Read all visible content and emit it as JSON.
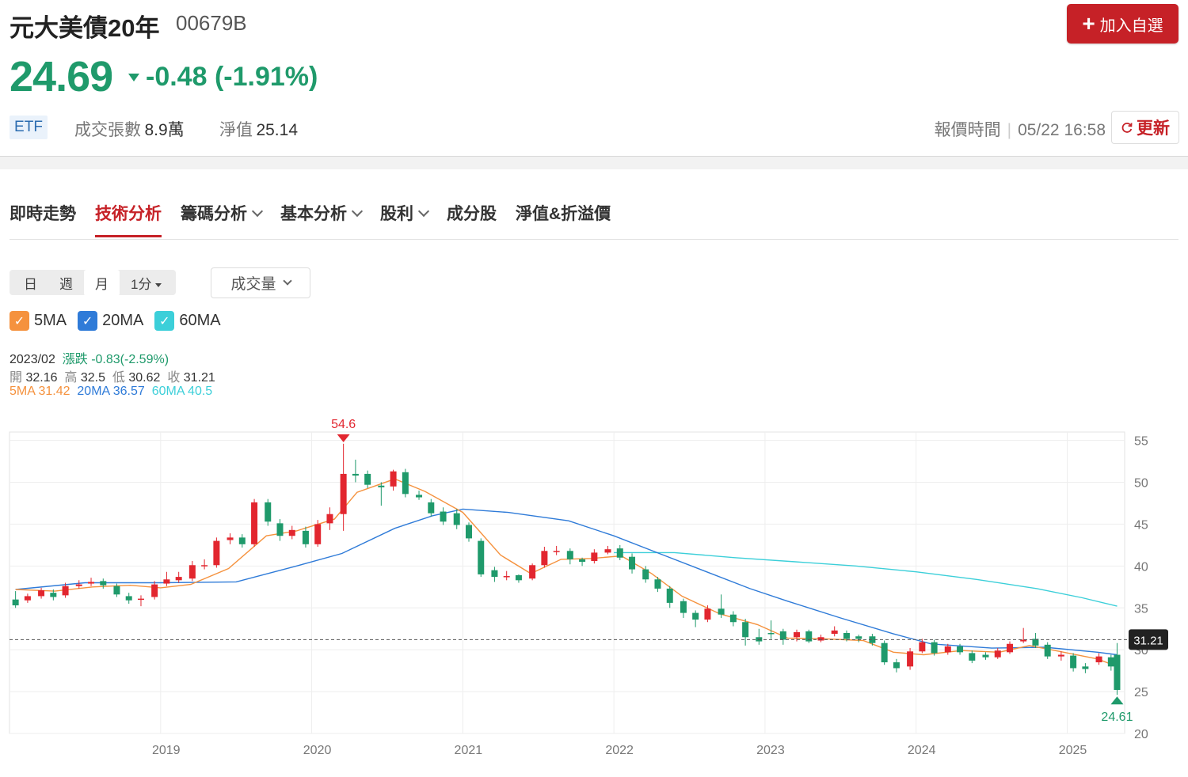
{
  "header": {
    "title": "元大美債20年",
    "code": "00679B",
    "add_button": "加入自選",
    "price": "24.69",
    "change": "-0.48 (-1.91%)",
    "badge": "ETF",
    "volume_label": "成交張數",
    "volume_value": "8.9萬",
    "nav_label": "淨值",
    "nav_value": "25.14",
    "quote_time_label": "報價時間",
    "quote_time_value": "05/22 16:58",
    "refresh_label": "更新"
  },
  "tabs": [
    {
      "label": "即時走勢",
      "dropdown": false
    },
    {
      "label": "技術分析",
      "dropdown": false,
      "active": true
    },
    {
      "label": "籌碼分析",
      "dropdown": true
    },
    {
      "label": "基本分析",
      "dropdown": true
    },
    {
      "label": "股利",
      "dropdown": true
    },
    {
      "label": "成分股",
      "dropdown": false
    },
    {
      "label": "淨值&折溢價",
      "dropdown": false
    }
  ],
  "period": {
    "options": [
      "日",
      "週",
      "月",
      "1分"
    ],
    "selected": "月"
  },
  "indicator_dropdown": "成交量",
  "ma_legend": [
    {
      "label": "5MA",
      "color": "#f5923e"
    },
    {
      "label": "20MA",
      "color": "#2f7bd8"
    },
    {
      "label": "60MA",
      "color": "#3ccfd9"
    }
  ],
  "info": {
    "date": "2023/02",
    "change_label": "漲跌",
    "change_value": "-0.83(-2.59%)",
    "open_label": "開",
    "open": "32.16",
    "high_label": "高",
    "high": "32.5",
    "low_label": "低",
    "low": "30.62",
    "close_label": "收",
    "close": "31.21",
    "ma5": "5MA 31.42",
    "ma20": "20MA 36.57",
    "ma60": "60MA 40.5"
  },
  "colors": {
    "up": "#e2262f",
    "down": "#1f9a6b",
    "accent": "#c62127"
  },
  "chart_data": {
    "type": "candlestick",
    "x_ticks": [
      "2019",
      "2020",
      "2021",
      "2022",
      "2023",
      "2024",
      "2025"
    ],
    "y_ticks": [
      20,
      25,
      30,
      35,
      40,
      45,
      50,
      55
    ],
    "ylim": [
      20,
      56
    ],
    "xlim": [
      2018.0,
      2025.38
    ],
    "max_annotation": {
      "label": "54.6",
      "x": 2020.21,
      "value": 54.6
    },
    "min_annotation": {
      "label": "24.61",
      "x": 2025.33,
      "value": 24.61
    },
    "last_price_label": "31.21",
    "last_price": 31.21,
    "candles": [
      [
        2018.04,
        36.0,
        35.3,
        37.0,
        35.0
      ],
      [
        2018.12,
        35.9,
        36.4,
        36.7,
        35.6
      ],
      [
        2018.21,
        36.4,
        37.1,
        37.4,
        36.1
      ],
      [
        2018.29,
        36.8,
        36.3,
        37.2,
        35.9
      ],
      [
        2018.37,
        36.5,
        37.6,
        38.0,
        36.2
      ],
      [
        2018.46,
        37.6,
        37.8,
        38.3,
        37.3
      ],
      [
        2018.54,
        37.9,
        38.1,
        38.6,
        37.6
      ],
      [
        2018.62,
        38.2,
        37.7,
        38.5,
        37.3
      ],
      [
        2018.71,
        37.6,
        36.6,
        37.9,
        36.3
      ],
      [
        2018.79,
        36.4,
        35.9,
        36.8,
        35.5
      ],
      [
        2018.87,
        36.0,
        36.1,
        36.5,
        35.2
      ],
      [
        2018.96,
        36.3,
        37.8,
        38.2,
        36.0
      ],
      [
        2019.04,
        37.9,
        38.4,
        39.3,
        37.6
      ],
      [
        2019.12,
        38.3,
        38.7,
        39.3,
        38.0
      ],
      [
        2019.21,
        38.5,
        40.1,
        40.6,
        38.2
      ],
      [
        2019.29,
        40.0,
        40.1,
        40.8,
        39.6
      ],
      [
        2019.37,
        40.1,
        43.0,
        43.4,
        39.8
      ],
      [
        2019.46,
        43.1,
        43.4,
        43.9,
        42.6
      ],
      [
        2019.54,
        43.4,
        42.6,
        43.8,
        42.2
      ],
      [
        2019.62,
        42.6,
        47.6,
        48.0,
        42.3
      ],
      [
        2019.71,
        47.6,
        45.3,
        48.0,
        44.8
      ],
      [
        2019.79,
        45.1,
        43.6,
        45.6,
        43.0
      ],
      [
        2019.87,
        43.6,
        44.3,
        44.8,
        43.2
      ],
      [
        2019.96,
        44.2,
        42.6,
        44.7,
        42.2
      ],
      [
        2020.04,
        42.6,
        45.0,
        45.5,
        42.3
      ],
      [
        2020.12,
        45.1,
        46.2,
        47.0,
        44.3
      ],
      [
        2020.21,
        46.2,
        51.0,
        54.6,
        44.2
      ],
      [
        2020.29,
        51.0,
        50.8,
        52.7,
        50.0
      ],
      [
        2020.37,
        51.0,
        49.7,
        51.4,
        49.3
      ],
      [
        2020.46,
        49.6,
        49.4,
        50.0,
        47.2
      ],
      [
        2020.54,
        49.5,
        51.3,
        51.5,
        49.0
      ],
      [
        2020.62,
        51.2,
        48.6,
        51.6,
        48.2
      ],
      [
        2020.71,
        48.5,
        48.2,
        49.0,
        47.9
      ],
      [
        2020.79,
        47.6,
        46.3,
        48.0,
        45.9
      ],
      [
        2020.87,
        46.5,
        45.3,
        47.0,
        44.9
      ],
      [
        2020.96,
        46.3,
        44.9,
        46.8,
        44.4
      ],
      [
        2021.04,
        44.9,
        43.3,
        45.2,
        42.9
      ],
      [
        2021.12,
        43.0,
        39.0,
        43.3,
        38.7
      ],
      [
        2021.21,
        39.5,
        38.7,
        39.9,
        38.1
      ],
      [
        2021.29,
        38.7,
        38.8,
        39.4,
        38.3
      ],
      [
        2021.37,
        38.9,
        38.3,
        39.0,
        38.0
      ],
      [
        2021.46,
        38.5,
        40.1,
        40.3,
        38.3
      ],
      [
        2021.54,
        40.1,
        41.8,
        42.3,
        39.8
      ],
      [
        2021.62,
        41.8,
        41.8,
        42.4,
        41.3
      ],
      [
        2021.71,
        41.8,
        40.8,
        42.1,
        40.2
      ],
      [
        2021.79,
        40.8,
        40.5,
        41.0,
        40.0
      ],
      [
        2021.87,
        40.6,
        41.6,
        42.0,
        40.3
      ],
      [
        2021.96,
        41.6,
        42.0,
        42.4,
        41.4
      ],
      [
        2022.04,
        42.1,
        41.0,
        42.5,
        40.7
      ],
      [
        2022.12,
        41.1,
        39.6,
        41.5,
        39.1
      ],
      [
        2022.21,
        39.6,
        38.4,
        40.0,
        38.0
      ],
      [
        2022.29,
        38.4,
        37.3,
        38.7,
        36.9
      ],
      [
        2022.37,
        37.3,
        35.6,
        37.6,
        35.0
      ],
      [
        2022.46,
        35.8,
        34.4,
        36.1,
        33.8
      ],
      [
        2022.54,
        34.4,
        33.6,
        34.7,
        32.7
      ],
      [
        2022.62,
        33.6,
        34.9,
        35.3,
        33.3
      ],
      [
        2022.71,
        34.9,
        34.2,
        36.6,
        33.8
      ],
      [
        2022.79,
        34.2,
        33.3,
        34.6,
        32.8
      ],
      [
        2022.87,
        33.3,
        31.5,
        33.7,
        30.5
      ],
      [
        2022.96,
        31.5,
        31.0,
        32.5,
        30.6
      ],
      [
        2023.04,
        32.0,
        31.9,
        33.5,
        31.3
      ],
      [
        2023.12,
        32.2,
        31.2,
        32.5,
        30.6
      ],
      [
        2023.21,
        31.5,
        32.1,
        32.4,
        31.0
      ],
      [
        2023.29,
        32.2,
        31.0,
        32.4,
        30.8
      ],
      [
        2023.37,
        31.1,
        31.5,
        31.8,
        30.9
      ],
      [
        2023.46,
        31.9,
        32.3,
        32.8,
        31.6
      ],
      [
        2023.54,
        32.0,
        31.3,
        32.3,
        31.0
      ],
      [
        2023.62,
        31.6,
        31.3,
        31.8,
        30.9
      ],
      [
        2023.71,
        31.6,
        30.8,
        31.9,
        30.5
      ],
      [
        2023.79,
        30.8,
        28.5,
        31.1,
        28.2
      ],
      [
        2023.87,
        28.5,
        27.8,
        28.9,
        27.3
      ],
      [
        2023.96,
        28.0,
        29.8,
        30.2,
        27.6
      ],
      [
        2024.04,
        29.8,
        30.9,
        31.3,
        29.6
      ],
      [
        2024.12,
        30.9,
        29.6,
        31.2,
        29.3
      ],
      [
        2024.21,
        29.7,
        30.4,
        30.7,
        29.4
      ],
      [
        2024.29,
        30.4,
        29.7,
        30.7,
        29.4
      ],
      [
        2024.37,
        29.6,
        28.7,
        29.9,
        28.4
      ],
      [
        2024.46,
        29.4,
        29.1,
        29.7,
        28.8
      ],
      [
        2024.54,
        29.1,
        29.9,
        30.2,
        28.9
      ],
      [
        2024.62,
        29.7,
        30.7,
        31.0,
        29.5
      ],
      [
        2024.71,
        31.0,
        31.2,
        32.6,
        30.8
      ],
      [
        2024.79,
        31.3,
        30.5,
        32.0,
        30.2
      ],
      [
        2024.87,
        30.6,
        29.2,
        30.9,
        28.9
      ],
      [
        2024.96,
        29.2,
        29.4,
        29.8,
        28.7
      ],
      [
        2025.04,
        29.3,
        27.8,
        29.6,
        27.4
      ],
      [
        2025.12,
        28.0,
        27.7,
        28.4,
        27.2
      ],
      [
        2025.21,
        28.5,
        29.2,
        29.6,
        28.2
      ],
      [
        2025.29,
        29.1,
        28.0,
        29.4,
        27.5
      ],
      [
        2025.33,
        29.4,
        25.2,
        30.8,
        24.61
      ]
    ],
    "ma5": [
      [
        2018.04,
        37.2
      ],
      [
        2018.3,
        37.0
      ],
      [
        2018.55,
        37.5
      ],
      [
        2018.8,
        37.7
      ],
      [
        2019.0,
        37.4
      ],
      [
        2019.2,
        37.8
      ],
      [
        2019.45,
        39.7
      ],
      [
        2019.7,
        43.6
      ],
      [
        2019.9,
        44.2
      ],
      [
        2020.15,
        45.6
      ],
      [
        2020.3,
        48.8
      ],
      [
        2020.55,
        50.4
      ],
      [
        2020.75,
        48.9
      ],
      [
        2021.0,
        46.4
      ],
      [
        2021.25,
        41.3
      ],
      [
        2021.45,
        39.1
      ],
      [
        2021.65,
        40.8
      ],
      [
        2021.85,
        40.9
      ],
      [
        2022.05,
        41.2
      ],
      [
        2022.25,
        39.1
      ],
      [
        2022.45,
        36.4
      ],
      [
        2022.7,
        34.3
      ],
      [
        2022.95,
        33.0
      ],
      [
        2023.15,
        31.4
      ],
      [
        2023.4,
        31.3
      ],
      [
        2023.65,
        31.1
      ],
      [
        2023.85,
        29.7
      ],
      [
        2024.05,
        29.4
      ],
      [
        2024.3,
        29.9
      ],
      [
        2024.55,
        29.7
      ],
      [
        2024.75,
        30.5
      ],
      [
        2024.95,
        29.8
      ],
      [
        2025.2,
        28.9
      ],
      [
        2025.33,
        28.0
      ]
    ],
    "ma20": [
      [
        2018.04,
        37.2
      ],
      [
        2018.5,
        38.0
      ],
      [
        2019.0,
        38.0
      ],
      [
        2019.5,
        38.1
      ],
      [
        2019.9,
        40.0
      ],
      [
        2020.2,
        41.5
      ],
      [
        2020.55,
        44.5
      ],
      [
        2020.8,
        46.0
      ],
      [
        2021.0,
        46.8
      ],
      [
        2021.3,
        46.4
      ],
      [
        2021.7,
        45.4
      ],
      [
        2022.0,
        43.6
      ],
      [
        2022.3,
        41.5
      ],
      [
        2022.6,
        39.4
      ],
      [
        2022.9,
        37.3
      ],
      [
        2023.15,
        35.8
      ],
      [
        2023.5,
        33.8
      ],
      [
        2023.85,
        31.9
      ],
      [
        2024.1,
        30.7
      ],
      [
        2024.5,
        30.2
      ],
      [
        2024.85,
        30.3
      ],
      [
        2025.2,
        29.7
      ],
      [
        2025.33,
        29.4
      ]
    ],
    "ma60": [
      [
        2022.0,
        41.6
      ],
      [
        2022.4,
        41.6
      ],
      [
        2022.8,
        41.0
      ],
      [
        2023.2,
        40.5
      ],
      [
        2023.6,
        40.0
      ],
      [
        2024.0,
        39.3
      ],
      [
        2024.4,
        38.4
      ],
      [
        2024.8,
        37.3
      ],
      [
        2025.1,
        36.2
      ],
      [
        2025.33,
        35.2
      ]
    ]
  }
}
